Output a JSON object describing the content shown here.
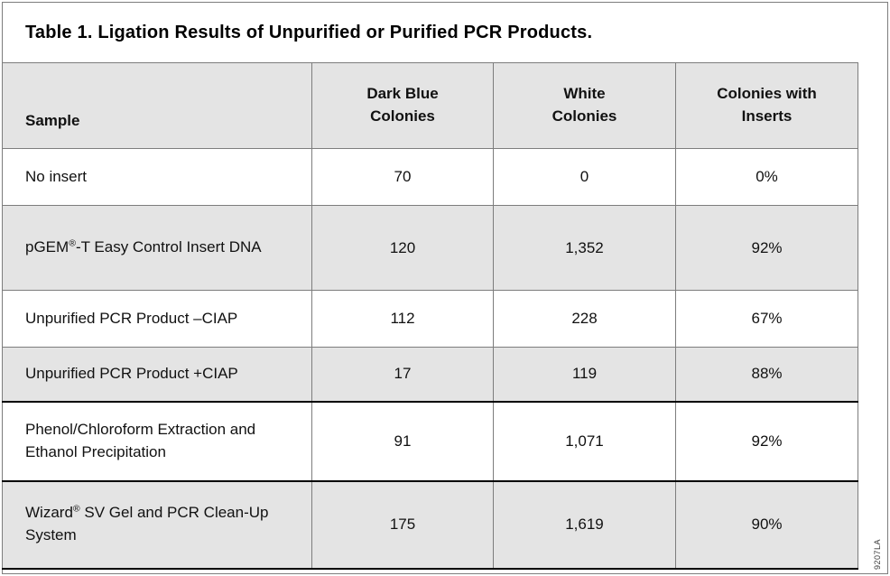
{
  "title": "Table 1. Ligation Results of Unpurified or Purified PCR Products.",
  "figure_code": "9207LA",
  "colors": {
    "shaded_row_bg": "#e4e4e4",
    "grid_line": "#7d7d7d",
    "heavy_line": "#000000",
    "text": "#111111"
  },
  "table": {
    "columns": [
      "Sample",
      "Dark Blue Colonies",
      "White Colonies",
      "Colonies with Inserts"
    ],
    "rows": [
      {
        "sample": "No insert",
        "dark_blue_colonies": "70",
        "white_colonies": "0",
        "colonies_with_inserts": "0%"
      },
      {
        "sample": "pGEM®-T Easy Control Insert DNA",
        "dark_blue_colonies": "120",
        "white_colonies": "1,352",
        "colonies_with_inserts": "92%"
      },
      {
        "sample": "Unpurified PCR Product –CIAP",
        "dark_blue_colonies": "112",
        "white_colonies": "228",
        "colonies_with_inserts": "67%"
      },
      {
        "sample": "Unpurified PCR Product +CIAP",
        "dark_blue_colonies": "17",
        "white_colonies": "119",
        "colonies_with_inserts": "88%"
      },
      {
        "sample": "Phenol/Chloroform Extraction and Ethanol Precipitation",
        "dark_blue_colonies": "91",
        "white_colonies": "1,071",
        "colonies_with_inserts": "92%"
      },
      {
        "sample": "Wizard® SV Gel and PCR Clean-Up System",
        "dark_blue_colonies": "175",
        "white_colonies": "1,619",
        "colonies_with_inserts": "90%"
      }
    ]
  }
}
